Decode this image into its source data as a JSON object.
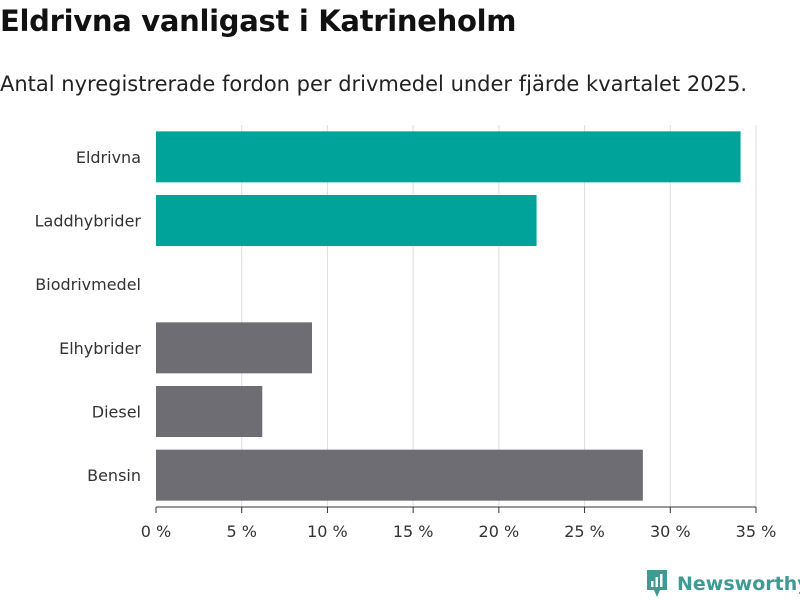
{
  "title": "Eldrivna vanligast i Katrineholm",
  "subtitle": "Antal nyregistrerade fordon per drivmedel under fjärde kvartalet 2025.",
  "brand": "Newsworthy",
  "colors": {
    "highlight": "#00a39a",
    "default": "#6e6d73",
    "grid": "#dddddd",
    "brand": "#3e9a92"
  },
  "chart_data": {
    "type": "bar",
    "orientation": "horizontal",
    "categories": [
      "Eldrivna",
      "Laddhybrider",
      "Biodrivmedel",
      "Elhybrider",
      "Diesel",
      "Bensin"
    ],
    "values": [
      34.1,
      22.2,
      0,
      9.1,
      6.2,
      28.4
    ],
    "highlighted": [
      true,
      true,
      false,
      false,
      false,
      false
    ],
    "xlim": [
      0,
      35
    ],
    "xticks": [
      0,
      5,
      10,
      15,
      20,
      25,
      30,
      35
    ],
    "xtick_labels": [
      "0 %",
      "5 %",
      "10 %",
      "15 %",
      "20 %",
      "25 %",
      "30 %",
      "35 %"
    ],
    "xlabel": "",
    "ylabel": "",
    "grid": true
  }
}
